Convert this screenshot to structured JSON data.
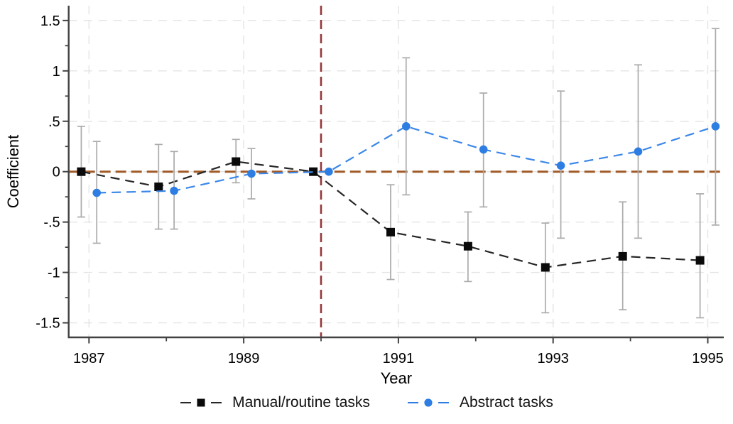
{
  "chart_data": {
    "type": "line",
    "title": "",
    "xlabel": "Year",
    "ylabel": "Coefficient",
    "x": [
      1987,
      1988,
      1989,
      1990,
      1991,
      1992,
      1993,
      1994,
      1995
    ],
    "x_major_ticks": [
      1987,
      1989,
      1991,
      1993,
      1995
    ],
    "x_minor_ticks": [
      1988,
      1990,
      1992,
      1994
    ],
    "x_tick_labels": [
      "1987",
      "1989",
      "1991",
      "1993",
      "1995"
    ],
    "y_major_ticks": [
      1.5,
      1,
      0.5,
      0,
      -0.5,
      -1,
      -1.5
    ],
    "y_tick_labels": [
      "1.5",
      "1",
      ".5",
      "0",
      "-.5",
      "-1",
      "-1.5"
    ],
    "y_minor_ticks": [
      1.25,
      0.75,
      0.25,
      -0.25,
      -0.75,
      -1.25
    ],
    "xlim": [
      1986.74,
      1995.21
    ],
    "ylim": [
      -1.65,
      1.65
    ],
    "grid": true,
    "legend_position": "bottom",
    "reference_lines": {
      "horizontal_y": 0,
      "vertical_x": 1990
    },
    "series": [
      {
        "name": "Manual/routine tasks",
        "marker": "square",
        "color": "#0a0a0a",
        "line_color": "#262626",
        "x_offset_years": -0.1,
        "values": [
          0.0,
          -0.15,
          0.1,
          0.0,
          -0.6,
          -0.74,
          -0.95,
          -0.84,
          -0.88
        ],
        "ci_low": [
          -0.45,
          -0.57,
          -0.11,
          null,
          -1.07,
          -1.09,
          -1.4,
          -1.37,
          -1.45
        ],
        "ci_high": [
          0.45,
          0.27,
          0.32,
          null,
          -0.13,
          -0.4,
          -0.51,
          -0.3,
          -0.22
        ]
      },
      {
        "name": "Abstract tasks",
        "marker": "circle",
        "color": "#2E7DE3",
        "line_color": "#3B87E8",
        "x_offset_years": 0.1,
        "values": [
          -0.21,
          -0.19,
          -0.02,
          0.0,
          0.45,
          0.22,
          0.06,
          0.2,
          0.45
        ],
        "ci_low": [
          -0.71,
          -0.57,
          -0.27,
          null,
          -0.23,
          -0.35,
          -0.66,
          -0.66,
          -0.53
        ],
        "ci_high": [
          0.3,
          0.2,
          0.23,
          null,
          1.13,
          0.78,
          0.8,
          1.06,
          1.42
        ]
      }
    ],
    "colors": {
      "ci_bar": "#ABABAB",
      "zero_line": "#A05A28",
      "event_line": "#93383C",
      "grid": "#E4E4E4",
      "axis": "#424242",
      "text": "#000000"
    }
  }
}
